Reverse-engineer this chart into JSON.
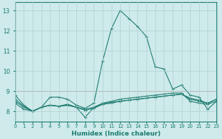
{
  "x": [
    0,
    1,
    2,
    3,
    4,
    5,
    6,
    7,
    8,
    9,
    10,
    11,
    12,
    13,
    14,
    15,
    16,
    17,
    18,
    19,
    20,
    21,
    22,
    23
  ],
  "line1": [
    8.8,
    8.3,
    8.0,
    8.2,
    8.7,
    8.7,
    8.6,
    8.3,
    8.15,
    8.4,
    10.5,
    12.1,
    13.0,
    12.6,
    12.2,
    11.7,
    10.2,
    10.1,
    9.1,
    9.3,
    8.8,
    8.7,
    8.1,
    8.5
  ],
  "line2": [
    8.4,
    8.1,
    8.0,
    8.2,
    8.3,
    8.25,
    8.3,
    8.2,
    8.1,
    8.2,
    8.4,
    8.5,
    8.6,
    8.65,
    8.7,
    8.75,
    8.8,
    8.85,
    8.9,
    8.9,
    8.5,
    8.4,
    8.35,
    8.5
  ],
  "line3": [
    8.5,
    8.2,
    8.0,
    8.2,
    8.3,
    8.25,
    8.3,
    8.2,
    8.05,
    8.15,
    8.35,
    8.45,
    8.5,
    8.55,
    8.6,
    8.65,
    8.7,
    8.75,
    8.8,
    8.85,
    8.6,
    8.5,
    8.4,
    8.6
  ],
  "line4": [
    8.6,
    8.25,
    8.0,
    8.2,
    8.3,
    8.25,
    8.35,
    8.2,
    7.7,
    8.2,
    8.35,
    8.4,
    8.5,
    8.55,
    8.6,
    8.65,
    8.7,
    8.75,
    8.8,
    8.85,
    8.65,
    8.55,
    8.4,
    8.6
  ],
  "ylim": [
    7.5,
    13.4
  ],
  "yticks": [
    8,
    9,
    10,
    11,
    12,
    13
  ],
  "xlabel": "Humidex (Indice chaleur)",
  "line_color": "#1a7a6e",
  "bg_color": "#ceeaea",
  "grid_color": "#afd0d0",
  "axis_color": "#1a7a6e",
  "hline_color": "#c08080",
  "hline_y": 9.0
}
